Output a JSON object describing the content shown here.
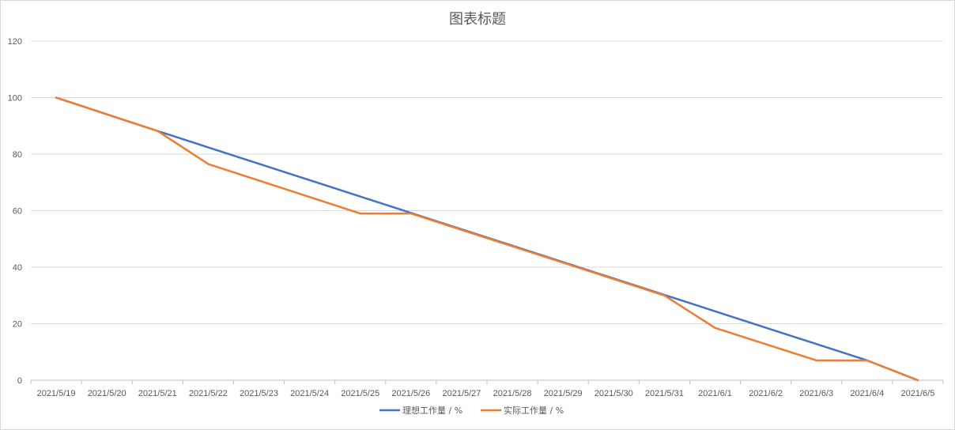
{
  "chart_data": {
    "type": "line",
    "title": "图表标题",
    "xlabel": "",
    "ylabel": "",
    "ylim": [
      0,
      120
    ],
    "yticks": [
      0,
      20,
      40,
      60,
      80,
      100,
      120
    ],
    "grid": true,
    "legend": "bottom",
    "categories": [
      "2021/5/19",
      "2021/5/20",
      "2021/5/21",
      "2021/5/22",
      "2021/5/23",
      "2021/5/24",
      "2021/5/25",
      "2021/5/26",
      "2021/5/27",
      "2021/5/28",
      "2021/5/29",
      "2021/5/30",
      "2021/5/31",
      "2021/6/1",
      "2021/6/2",
      "2021/6/3",
      "2021/6/4",
      "2021/6/5"
    ],
    "series": [
      {
        "name": "理想工作量 / %",
        "color": "#4472c4",
        "points": [
          {
            "x": "2021/5/19",
            "y": 100
          },
          {
            "x": "2021/5/21",
            "y": 88.2
          },
          {
            "x": "2021/6/4",
            "y": 7
          },
          {
            "x": "2021/6/5",
            "y": 0
          }
        ]
      },
      {
        "name": "实际工作量 / %",
        "color": "#ed7d31",
        "points": [
          {
            "x": "2021/5/19",
            "y": 100
          },
          {
            "x": "2021/5/21",
            "y": 88.2
          },
          {
            "x": "2021/5/22",
            "y": 76.5
          },
          {
            "x": "2021/5/25",
            "y": 59
          },
          {
            "x": "2021/5/26",
            "y": 59
          },
          {
            "x": "2021/5/31",
            "y": 30
          },
          {
            "x": "2021/6/1",
            "y": 18.5
          },
          {
            "x": "2021/6/3",
            "y": 7
          },
          {
            "x": "2021/6/4",
            "y": 7
          },
          {
            "x": "2021/6/5",
            "y": 0
          }
        ]
      }
    ]
  }
}
